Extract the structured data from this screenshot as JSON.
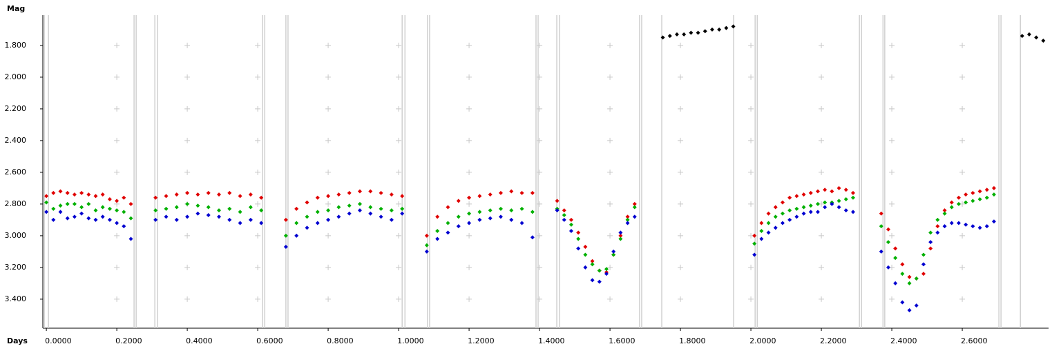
{
  "chart_data": {
    "type": "scatter",
    "xlabel": "Days",
    "ylabel": "Mag",
    "xlim": [
      -0.01,
      2.845
    ],
    "ylim": [
      1.609,
      3.583
    ],
    "y_inverted": true,
    "grid": "cross",
    "xticks": [
      {
        "value": 0,
        "label": "0.0000"
      },
      {
        "value": 0.2,
        "label": "0.2000"
      },
      {
        "value": 0.4,
        "label": "0.4000"
      },
      {
        "value": 0.6,
        "label": "0.6000"
      },
      {
        "value": 0.8,
        "label": "0.8000"
      },
      {
        "value": 1.0,
        "label": "1.0000"
      },
      {
        "value": 1.2,
        "label": "1.2000"
      },
      {
        "value": 1.4,
        "label": "1.4000"
      },
      {
        "value": 1.6,
        "label": "1.6000"
      },
      {
        "value": 1.8,
        "label": "1.8000"
      },
      {
        "value": 2.0,
        "label": "2.0000"
      },
      {
        "value": 2.2,
        "label": "2.2000"
      },
      {
        "value": 2.4,
        "label": "2.4000"
      },
      {
        "value": 2.6,
        "label": "2.6000"
      }
    ],
    "yticks": [
      {
        "value": 1.8,
        "label": "1.800"
      },
      {
        "value": 2.0,
        "label": "2.000"
      },
      {
        "value": 2.2,
        "label": "2.200"
      },
      {
        "value": 2.4,
        "label": "2.400"
      },
      {
        "value": 2.6,
        "label": "2.600"
      },
      {
        "value": 2.8,
        "label": "2.800"
      },
      {
        "value": 3.0,
        "label": "3.000"
      },
      {
        "value": 3.2,
        "label": "3.200"
      },
      {
        "value": 3.4,
        "label": "3.400"
      }
    ],
    "session_lines": [
      -0.006,
      0.006,
      0.249,
      0.255,
      0.308,
      0.316,
      0.614,
      0.62,
      0.68,
      0.686,
      1.01,
      1.018,
      1.082,
      1.088,
      1.39,
      1.396,
      1.449,
      1.457,
      1.684,
      1.69,
      1.747,
      1.951,
      2.012,
      2.018,
      2.308,
      2.314,
      2.375,
      2.38,
      2.704,
      2.71,
      2.765
    ],
    "x": [
      0.0,
      0.02,
      0.04,
      0.06,
      0.08,
      0.1,
      0.12,
      0.14,
      0.16,
      0.18,
      0.2,
      0.22,
      0.24,
      0.31,
      0.34,
      0.37,
      0.4,
      0.43,
      0.46,
      0.49,
      0.52,
      0.55,
      0.58,
      0.61,
      0.68,
      0.71,
      0.74,
      0.77,
      0.8,
      0.83,
      0.86,
      0.89,
      0.92,
      0.95,
      0.98,
      1.01,
      1.08,
      1.11,
      1.14,
      1.17,
      1.2,
      1.23,
      1.26,
      1.29,
      1.32,
      1.35,
      1.38,
      1.45,
      1.47,
      1.49,
      1.51,
      1.53,
      1.55,
      1.57,
      1.59,
      1.61,
      1.63,
      1.65,
      1.67,
      2.01,
      2.03,
      2.05,
      2.07,
      2.09,
      2.11,
      2.13,
      2.15,
      2.17,
      2.19,
      2.21,
      2.23,
      2.25,
      2.27,
      2.29,
      2.37,
      2.39,
      2.41,
      2.43,
      2.45,
      2.47,
      2.49,
      2.51,
      2.53,
      2.55,
      2.57,
      2.59,
      2.61,
      2.63,
      2.65,
      2.67,
      2.69
    ],
    "series": [
      {
        "color": "#e00000",
        "values": [
          2.75,
          2.73,
          2.72,
          2.73,
          2.74,
          2.73,
          2.74,
          2.75,
          2.74,
          2.77,
          2.78,
          2.76,
          2.8,
          2.76,
          2.75,
          2.74,
          2.73,
          2.74,
          2.73,
          2.74,
          2.73,
          2.75,
          2.74,
          2.76,
          2.9,
          2.83,
          2.79,
          2.76,
          2.75,
          2.74,
          2.73,
          2.72,
          2.72,
          2.73,
          2.74,
          2.75,
          3.0,
          2.88,
          2.82,
          2.78,
          2.76,
          2.75,
          2.74,
          2.73,
          2.72,
          2.73,
          2.73,
          2.78,
          2.84,
          2.9,
          2.98,
          3.07,
          3.16,
          3.22,
          3.23,
          3.12,
          3.0,
          2.88,
          2.8,
          3.0,
          2.92,
          2.86,
          2.82,
          2.79,
          2.76,
          2.75,
          2.74,
          2.73,
          2.72,
          2.71,
          2.72,
          2.7,
          2.71,
          2.73,
          2.86,
          2.96,
          3.08,
          3.18,
          3.26,
          3.27,
          3.24,
          3.08,
          2.94,
          2.84,
          2.79,
          2.76,
          2.74,
          2.73,
          2.72,
          2.71,
          2.7
        ]
      },
      {
        "color": "#00b000",
        "values": [
          2.79,
          2.83,
          2.81,
          2.8,
          2.8,
          2.82,
          2.8,
          2.84,
          2.82,
          2.83,
          2.84,
          2.85,
          2.89,
          2.84,
          2.83,
          2.82,
          2.8,
          2.81,
          2.82,
          2.84,
          2.83,
          2.85,
          2.82,
          2.84,
          3.0,
          2.92,
          2.88,
          2.85,
          2.84,
          2.82,
          2.81,
          2.8,
          2.82,
          2.83,
          2.84,
          2.83,
          3.06,
          2.97,
          2.92,
          2.88,
          2.86,
          2.85,
          2.84,
          2.83,
          2.84,
          2.83,
          2.85,
          2.83,
          2.87,
          2.93,
          3.02,
          3.12,
          3.18,
          3.22,
          3.21,
          3.12,
          3.02,
          2.9,
          2.82,
          3.05,
          2.97,
          2.92,
          2.88,
          2.86,
          2.84,
          2.83,
          2.82,
          2.81,
          2.8,
          2.79,
          2.79,
          2.78,
          2.77,
          2.76,
          2.94,
          3.04,
          3.14,
          3.24,
          3.3,
          3.27,
          3.12,
          2.98,
          2.9,
          2.86,
          2.82,
          2.8,
          2.79,
          2.78,
          2.77,
          2.76,
          2.74
        ]
      },
      {
        "color": "#0000d0",
        "values": [
          2.85,
          2.9,
          2.85,
          2.89,
          2.88,
          2.86,
          2.89,
          2.9,
          2.88,
          2.9,
          2.92,
          2.94,
          3.02,
          2.9,
          2.88,
          2.9,
          2.88,
          2.86,
          2.87,
          2.88,
          2.9,
          2.92,
          2.9,
          2.92,
          3.07,
          3.0,
          2.95,
          2.92,
          2.9,
          2.88,
          2.86,
          2.84,
          2.86,
          2.88,
          2.9,
          2.86,
          3.1,
          3.02,
          2.98,
          2.94,
          2.92,
          2.9,
          2.89,
          2.88,
          2.9,
          2.92,
          3.01,
          2.84,
          2.9,
          2.97,
          3.08,
          3.2,
          3.28,
          3.29,
          3.24,
          3.1,
          2.98,
          2.92,
          2.88,
          3.12,
          3.02,
          2.98,
          2.95,
          2.92,
          2.9,
          2.88,
          2.86,
          2.85,
          2.85,
          2.82,
          2.8,
          2.82,
          2.84,
          2.85,
          3.1,
          3.2,
          3.3,
          3.42,
          3.47,
          3.44,
          3.18,
          3.04,
          2.98,
          2.94,
          2.92,
          2.92,
          2.93,
          2.94,
          2.95,
          2.94,
          2.91
        ]
      },
      {
        "color": "#000000",
        "x": [
          1.75,
          1.77,
          1.79,
          1.81,
          1.83,
          1.85,
          1.87,
          1.89,
          1.91,
          1.93,
          1.95,
          2.77,
          2.79,
          2.81,
          2.83
        ],
        "values": [
          1.75,
          1.74,
          1.73,
          1.73,
          1.72,
          1.72,
          1.71,
          1.7,
          1.7,
          1.69,
          1.68,
          1.74,
          1.73,
          1.75,
          1.77
        ]
      }
    ]
  }
}
